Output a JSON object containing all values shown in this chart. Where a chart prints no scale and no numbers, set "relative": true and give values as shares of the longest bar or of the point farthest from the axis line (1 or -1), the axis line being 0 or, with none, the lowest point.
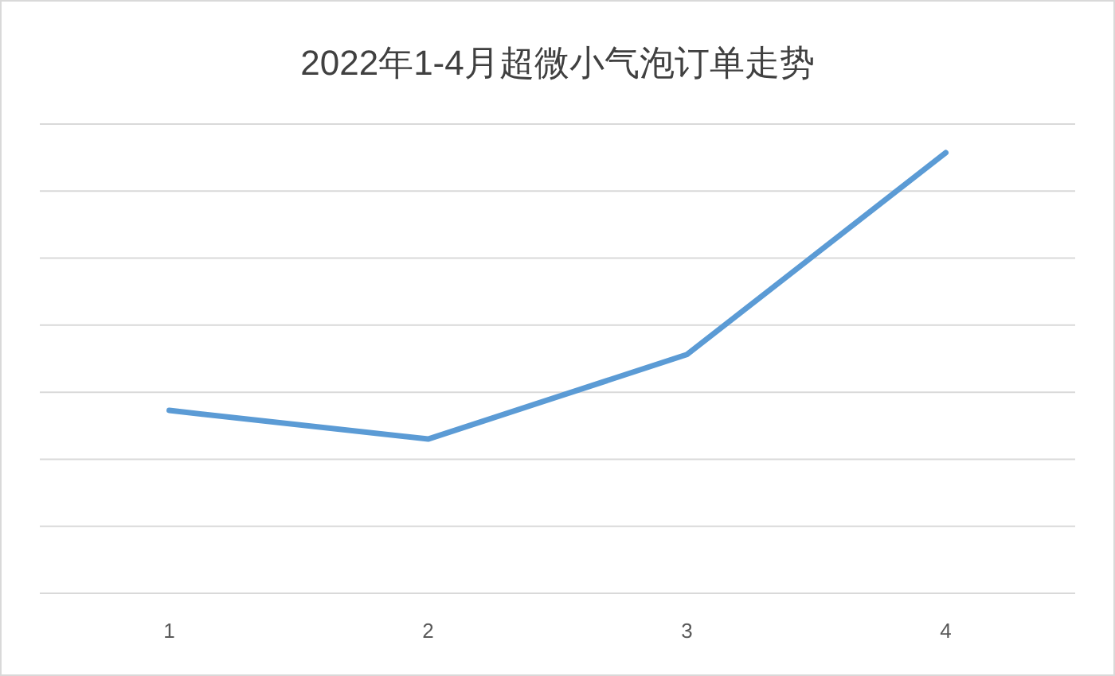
{
  "chart_data": {
    "type": "line",
    "title": "2022年1-4月超微小气泡订单走势",
    "categories": [
      "1",
      "2",
      "3",
      "4"
    ],
    "series": [
      {
        "color": "#5b9bd5",
        "values": [
          0.415,
          0.35,
          0.542,
          1
        ]
      }
    ],
    "relative": true,
    "grid": "y",
    "marker": "none",
    "line_style": "solid"
  }
}
